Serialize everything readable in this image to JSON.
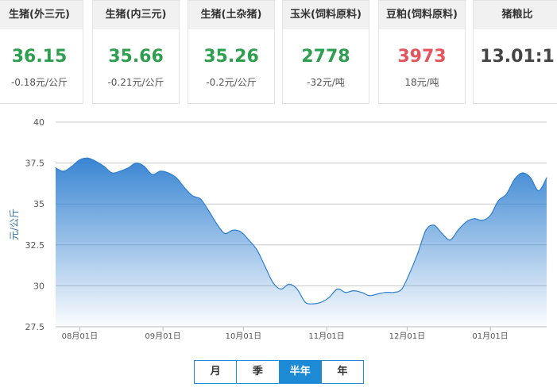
{
  "cards": [
    {
      "title": "生猪(外三元)",
      "price": "36.15",
      "change": "-0.18元/公斤",
      "trend": "down"
    },
    {
      "title": "生猪(内三元)",
      "price": "35.66",
      "change": "-0.21元/公斤",
      "trend": "down"
    },
    {
      "title": "生猪(土杂猪)",
      "price": "35.26",
      "change": "-0.2元/公斤",
      "trend": "down"
    },
    {
      "title": "玉米(饲料原料)",
      "price": "2778",
      "change": "-32元/吨",
      "trend": "down"
    },
    {
      "title": "豆粕(饲料原料)",
      "price": "3973",
      "change": "18元/吨",
      "trend": "up"
    },
    {
      "title": "猪粮比",
      "price": "13.01:1",
      "change": "",
      "trend": "neutral"
    }
  ],
  "colors": {
    "down": "#2e9e4f",
    "up": "#e5545c",
    "accent": "#1d8ad5",
    "line": "#2f7fd0"
  },
  "periods": {
    "month": "月",
    "season": "季",
    "half_year": "半年",
    "year": "年",
    "active": "half_year"
  },
  "chart_data": {
    "type": "area",
    "ylabel": "元/公斤",
    "ylim": [
      27.5,
      40
    ],
    "yticks": [
      "27.5",
      "30",
      "32.5",
      "35",
      "37.5",
      "40"
    ],
    "xticks": [
      "08月01日",
      "09月01日",
      "10月01日",
      "11月01日",
      "12月01日",
      "01月01日"
    ],
    "grid": true,
    "x": [
      "07-23",
      "07-26",
      "07-29",
      "08-01",
      "08-04",
      "08-07",
      "08-10",
      "08-13",
      "08-16",
      "08-19",
      "08-22",
      "08-25",
      "08-28",
      "08-31",
      "09-03",
      "09-06",
      "09-09",
      "09-12",
      "09-15",
      "09-18",
      "09-21",
      "09-24",
      "09-27",
      "09-30",
      "10-03",
      "10-06",
      "10-09",
      "10-12",
      "10-15",
      "10-18",
      "10-21",
      "10-24",
      "10-27",
      "10-30",
      "11-02",
      "11-05",
      "11-08",
      "11-11",
      "11-14",
      "11-17",
      "11-20",
      "11-23",
      "11-26",
      "11-29",
      "12-02",
      "12-05",
      "12-08",
      "12-11",
      "12-14",
      "12-17",
      "12-20",
      "12-23",
      "12-26",
      "12-29",
      "01-01",
      "01-04",
      "01-07",
      "01-10",
      "01-13",
      "01-16",
      "01-19",
      "01-22"
    ],
    "series": [
      {
        "values": [
          37.2,
          37.0,
          37.3,
          37.7,
          37.8,
          37.6,
          37.3,
          36.9,
          37.0,
          37.2,
          37.5,
          37.3,
          36.8,
          37.0,
          36.9,
          36.6,
          36.0,
          35.5,
          35.3,
          34.6,
          33.8,
          33.2,
          33.4,
          33.3,
          32.8,
          32.2,
          31.2,
          30.2,
          29.8,
          30.1,
          29.8,
          29.0,
          28.9,
          29.0,
          29.3,
          29.8,
          29.6,
          29.7,
          29.6,
          29.4,
          29.5,
          29.6,
          29.6,
          29.8,
          30.8,
          32.0,
          33.4,
          33.7,
          33.2,
          32.8,
          33.4,
          33.9,
          34.1,
          34.0,
          34.3,
          35.2,
          35.6,
          36.5,
          36.9,
          36.6,
          35.8,
          36.6
        ]
      }
    ]
  }
}
